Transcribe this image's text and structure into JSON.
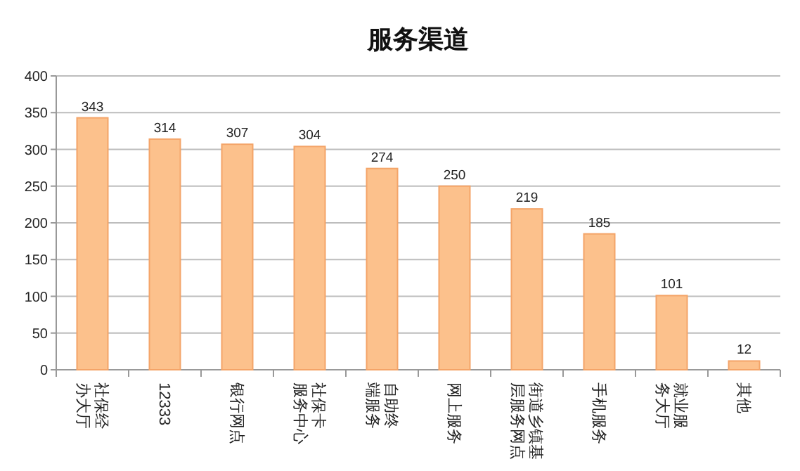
{
  "chart_data": {
    "type": "bar",
    "title": "服务渠道",
    "categories": [
      "社保经办大厅",
      "12333",
      "银行网点",
      "社保卡服务中心",
      "自助终端服务",
      "网上服务",
      "街道乡镇基层服务网点",
      "手机服务",
      "就业服务大厅",
      "其他"
    ],
    "values": [
      343,
      314,
      307,
      304,
      274,
      250,
      219,
      185,
      101,
      12
    ],
    "color": "#fcc18c",
    "ylim": [
      0,
      400
    ],
    "yticks": [
      0,
      50,
      100,
      150,
      200,
      250,
      300,
      350,
      400
    ],
    "grid": "y",
    "data_labels": true
  }
}
